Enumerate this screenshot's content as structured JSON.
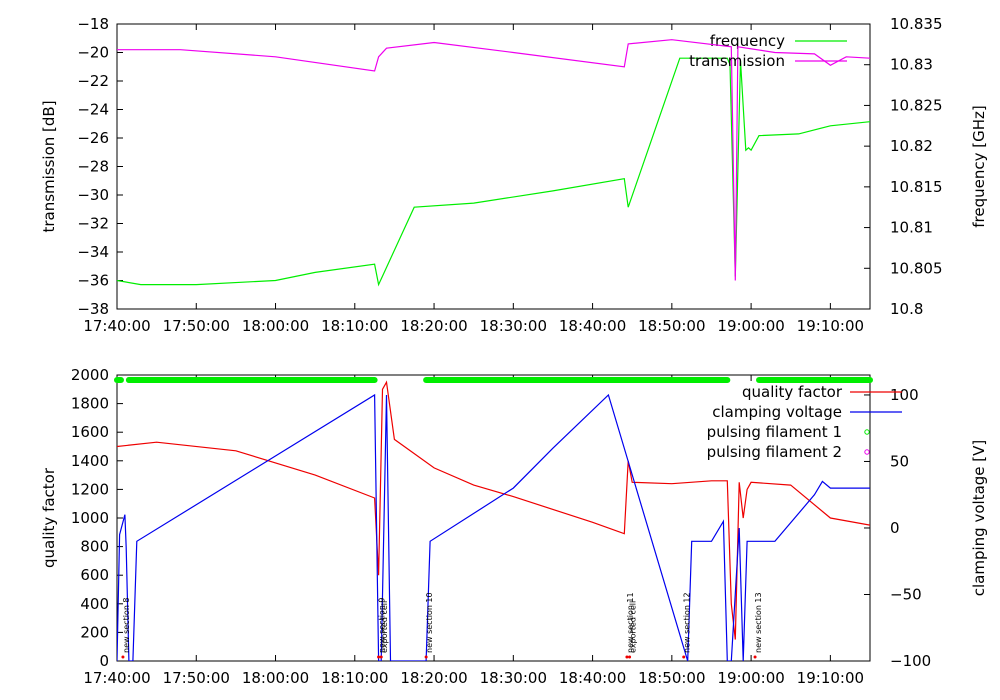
{
  "chart_data": [
    {
      "type": "line",
      "ylabel": "transmission [dB]",
      "y2label": "frequency [GHz]",
      "ylim": [
        -38,
        -18
      ],
      "y2lim": [
        10.8,
        10.835
      ],
      "yticks": [
        "−18",
        "−20",
        "−22",
        "−24",
        "−26",
        "−28",
        "−30",
        "−32",
        "−34",
        "−36",
        "−38"
      ],
      "y2ticks": [
        "10.835",
        "10.83",
        "10.825",
        "10.82",
        "10.815",
        "10.81",
        "10.805",
        "10.8"
      ],
      "xlim": [
        "17:40:00",
        "19:15:00"
      ],
      "xticks": [
        "17:40:00",
        "17:50:00",
        "18:00:00",
        "18:10:00",
        "18:20:00",
        "18:30:00",
        "18:40:00",
        "18:50:00",
        "19:00:00",
        "19:10:00"
      ],
      "legend_position": "top-right",
      "series": [
        {
          "name": "frequency",
          "axis": "y2",
          "color": "#00ee00",
          "points": [
            [
              "17:40:00",
              10.8035
            ],
            [
              "17:43:00",
              10.803
            ],
            [
              "17:50:00",
              10.803
            ],
            [
              "18:00:00",
              10.8035
            ],
            [
              "18:05:00",
              10.8045
            ],
            [
              "18:12:30",
              10.8055
            ],
            [
              "18:13:00",
              10.803
            ],
            [
              "18:17:30",
              10.8125
            ],
            [
              "18:25:00",
              10.813
            ],
            [
              "18:35:00",
              10.8145
            ],
            [
              "18:44:00",
              10.816
            ],
            [
              "18:44:30",
              10.8125
            ],
            [
              "18:51:00",
              10.8308
            ],
            [
              "18:57:00",
              10.8308
            ],
            [
              "18:57:20",
              10.83
            ],
            [
              "18:58:00",
              10.804
            ],
            [
              "18:58:40",
              10.8305
            ],
            [
              "18:59:20",
              10.8195
            ],
            [
              "18:59:40",
              10.8198
            ],
            [
              "19:00:00",
              10.8195
            ],
            [
              "19:01:00",
              10.8213
            ],
            [
              "19:06:00",
              10.8215
            ],
            [
              "19:10:00",
              10.8225
            ],
            [
              "19:15:00",
              10.823
            ]
          ]
        },
        {
          "name": "transmission",
          "axis": "y",
          "color": "#ee00ee",
          "points": [
            [
              "17:40:00",
              -19.8
            ],
            [
              "17:48:00",
              -19.8
            ],
            [
              "18:00:00",
              -20.3
            ],
            [
              "18:12:30",
              -21.3
            ],
            [
              "18:13:00",
              -20.3
            ],
            [
              "18:14:00",
              -19.7
            ],
            [
              "18:20:00",
              -19.3
            ],
            [
              "18:30:00",
              -20.0
            ],
            [
              "18:44:00",
              -21.0
            ],
            [
              "18:44:30",
              -19.4
            ],
            [
              "18:50:00",
              -19.1
            ],
            [
              "18:57:30",
              -19.6
            ],
            [
              "18:58:00",
              -36.0
            ],
            [
              "18:58:20",
              -19.6
            ],
            [
              "19:03:00",
              -20.0
            ],
            [
              "19:08:00",
              -20.1
            ],
            [
              "19:10:00",
              -20.9
            ],
            [
              "19:12:00",
              -20.3
            ],
            [
              "19:15:00",
              -20.4
            ]
          ]
        }
      ]
    },
    {
      "type": "line",
      "ylabel": "quality factor",
      "y2label": "clamping voltage [V]",
      "ylim": [
        0,
        2000
      ],
      "y2lim": [
        -100,
        115
      ],
      "yticks": [
        "2000",
        "1800",
        "1600",
        "1400",
        "1200",
        "1000",
        "800",
        "600",
        "400",
        "200",
        "0"
      ],
      "y2ticks": [
        "100",
        "50",
        "0",
        "−50",
        "−100"
      ],
      "xlim": [
        "17:40:00",
        "19:15:00"
      ],
      "xticks": [
        "17:40:00",
        "17:50:00",
        "18:00:00",
        "18:10:00",
        "18:20:00",
        "18:30:00",
        "18:40:00",
        "18:50:00",
        "19:00:00",
        "19:10:00"
      ],
      "legend_position": "top-right",
      "series": [
        {
          "name": "quality factor",
          "axis": "y",
          "color": "#ee0000",
          "points": [
            [
              "17:40:00",
              1500
            ],
            [
              "17:45:00",
              1530
            ],
            [
              "17:55:00",
              1470
            ],
            [
              "18:05:00",
              1300
            ],
            [
              "18:12:30",
              1140
            ],
            [
              "18:13:00",
              600
            ],
            [
              "18:13:30",
              1900
            ],
            [
              "18:14:00",
              1950
            ],
            [
              "18:15:00",
              1550
            ],
            [
              "18:20:00",
              1350
            ],
            [
              "18:25:00",
              1230
            ],
            [
              "18:30:00",
              1150
            ],
            [
              "18:40:00",
              970
            ],
            [
              "18:44:00",
              890
            ],
            [
              "18:44:30",
              1400
            ],
            [
              "18:45:00",
              1250
            ],
            [
              "18:50:00",
              1240
            ],
            [
              "18:55:00",
              1260
            ],
            [
              "18:57:00",
              1260
            ],
            [
              "18:57:30",
              400
            ],
            [
              "18:58:00",
              150
            ],
            [
              "18:58:30",
              1250
            ],
            [
              "18:59:00",
              1000
            ],
            [
              "18:59:30",
              1200
            ],
            [
              "19:00:00",
              1250
            ],
            [
              "19:05:00",
              1230
            ],
            [
              "19:10:00",
              1000
            ],
            [
              "19:15:00",
              950
            ]
          ]
        },
        {
          "name": "clamping voltage",
          "axis": "y2",
          "color": "#0000ee",
          "points": [
            [
              "17:40:00",
              -100
            ],
            [
              "17:40:20",
              -5
            ],
            [
              "17:41:00",
              10
            ],
            [
              "17:41:10",
              -15
            ],
            [
              "17:41:30",
              -100
            ],
            [
              "17:42:00",
              -100
            ],
            [
              "17:42:30",
              -10
            ],
            [
              "18:12:30",
              100
            ],
            [
              "18:13:00",
              -100
            ],
            [
              "18:13:20",
              -100
            ],
            [
              "18:14:00",
              100
            ],
            [
              "18:14:30",
              -100
            ],
            [
              "18:19:00",
              -100
            ],
            [
              "18:19:30",
              -10
            ],
            [
              "18:30:00",
              30
            ],
            [
              "18:35:00",
              60
            ],
            [
              "18:42:00",
              100
            ],
            [
              "18:52:00",
              -100
            ],
            [
              "18:52:30",
              -10
            ],
            [
              "18:55:00",
              -10
            ],
            [
              "18:56:30",
              5
            ],
            [
              "18:57:00",
              -100
            ],
            [
              "18:57:30",
              -100
            ],
            [
              "18:58:30",
              0
            ],
            [
              "18:59:00",
              -100
            ],
            [
              "18:59:30",
              -10
            ],
            [
              "19:03:00",
              -10
            ],
            [
              "19:08:00",
              25
            ],
            [
              "19:09:00",
              35
            ],
            [
              "19:10:00",
              30
            ],
            [
              "19:15:00",
              30
            ]
          ]
        },
        {
          "name": "pulsing filament 1",
          "axis": "status",
          "color": "#00ee00",
          "segments": [
            [
              "17:40:00",
              "17:40:30"
            ],
            [
              "17:41:30",
              "18:12:30"
            ],
            [
              "18:19:00",
              "18:57:00"
            ],
            [
              "19:01:00",
              "19:15:00"
            ]
          ]
        },
        {
          "name": "pulsing filament 2",
          "axis": "status",
          "color": "#ee00ee",
          "segments": []
        }
      ],
      "annotations": [
        {
          "x": "17:40:45",
          "text": "new section 8"
        },
        {
          "x": "18:13:00",
          "text": "new section 9"
        },
        {
          "x": "18:13:20",
          "text": "exported cell"
        },
        {
          "x": "18:19:00",
          "text": "new section 10"
        },
        {
          "x": "18:44:20",
          "text": "new section 11"
        },
        {
          "x": "18:44:40",
          "text": "exported cell"
        },
        {
          "x": "18:51:30",
          "text": "new section 12"
        },
        {
          "x": "19:00:30",
          "text": "new section 13"
        }
      ]
    }
  ]
}
